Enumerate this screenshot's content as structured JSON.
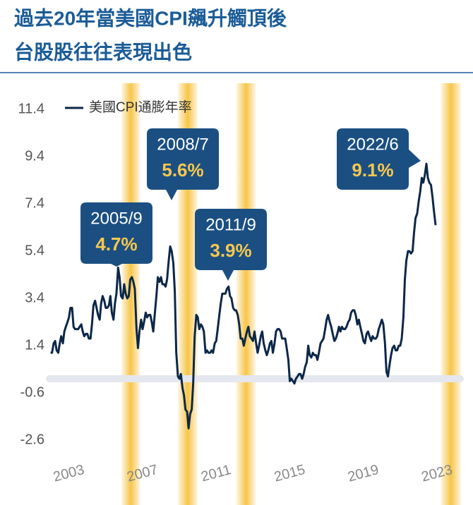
{
  "chart_data": {
    "type": "line",
    "title_lines": [
      "過去20年當美國CPI飆升觸頂後",
      "台股股往往表現出色"
    ],
    "x": [
      2002,
      2002.08,
      2002.17,
      2002.25,
      2002.33,
      2002.42,
      2002.5,
      2002.58,
      2002.67,
      2002.75,
      2002.83,
      2002.92,
      2003,
      2003.08,
      2003.17,
      2003.25,
      2003.33,
      2003.42,
      2003.5,
      2003.58,
      2003.67,
      2003.75,
      2003.83,
      2003.92,
      2004,
      2004.08,
      2004.17,
      2004.25,
      2004.33,
      2004.42,
      2004.5,
      2004.58,
      2004.67,
      2004.75,
      2004.83,
      2004.92,
      2005,
      2005.08,
      2005.17,
      2005.25,
      2005.33,
      2005.42,
      2005.5,
      2005.58,
      2005.67,
      2005.75,
      2005.83,
      2005.92,
      2006,
      2006.08,
      2006.17,
      2006.25,
      2006.33,
      2006.42,
      2006.5,
      2006.58,
      2006.67,
      2006.75,
      2006.83,
      2006.92,
      2007,
      2007.08,
      2007.17,
      2007.25,
      2007.33,
      2007.42,
      2007.5,
      2007.58,
      2007.67,
      2007.75,
      2007.83,
      2007.92,
      2008,
      2008.08,
      2008.17,
      2008.25,
      2008.33,
      2008.42,
      2008.5,
      2008.58,
      2008.67,
      2008.75,
      2008.83,
      2008.92,
      2009,
      2009.08,
      2009.17,
      2009.25,
      2009.33,
      2009.42,
      2009.5,
      2009.58,
      2009.67,
      2009.75,
      2009.83,
      2009.92,
      2010,
      2010.08,
      2010.17,
      2010.25,
      2010.33,
      2010.42,
      2010.5,
      2010.58,
      2010.67,
      2010.75,
      2010.83,
      2010.92,
      2011,
      2011.08,
      2011.17,
      2011.25,
      2011.33,
      2011.42,
      2011.5,
      2011.58,
      2011.67,
      2011.75,
      2011.83,
      2011.92,
      2012,
      2012.08,
      2012.17,
      2012.25,
      2012.33,
      2012.42,
      2012.5,
      2012.58,
      2012.67,
      2012.75,
      2012.83,
      2012.92,
      2013,
      2013.08,
      2013.17,
      2013.25,
      2013.33,
      2013.42,
      2013.5,
      2013.58,
      2013.67,
      2013.75,
      2013.83,
      2013.92,
      2014,
      2014.08,
      2014.17,
      2014.25,
      2014.33,
      2014.42,
      2014.5,
      2014.58,
      2014.67,
      2014.75,
      2014.83,
      2014.92,
      2015,
      2015.08,
      2015.17,
      2015.25,
      2015.33,
      2015.42,
      2015.5,
      2015.58,
      2015.67,
      2015.75,
      2015.83,
      2015.92,
      2016,
      2016.08,
      2016.17,
      2016.25,
      2016.33,
      2016.42,
      2016.5,
      2016.58,
      2016.67,
      2016.75,
      2016.83,
      2016.92,
      2017,
      2017.08,
      2017.17,
      2017.25,
      2017.33,
      2017.42,
      2017.5,
      2017.58,
      2017.67,
      2017.75,
      2017.83,
      2017.92,
      2018,
      2018.08,
      2018.17,
      2018.25,
      2018.33,
      2018.42,
      2018.5,
      2018.58,
      2018.67,
      2018.75,
      2018.83,
      2018.92,
      2019,
      2019.08,
      2019.17,
      2019.25,
      2019.33,
      2019.42,
      2019.5,
      2019.58,
      2019.67,
      2019.75,
      2019.83,
      2019.92,
      2020,
      2020.08,
      2020.17,
      2020.25,
      2020.33,
      2020.42,
      2020.5,
      2020.58,
      2020.67,
      2020.75,
      2020.83,
      2020.92,
      2021,
      2021.08,
      2021.17,
      2021.25,
      2021.33,
      2021.42,
      2021.5,
      2021.58,
      2021.67,
      2021.75,
      2021.83,
      2021.92,
      2022,
      2022.08,
      2022.17,
      2022.25,
      2022.33,
      2022.42,
      2022.5,
      2022.58,
      2022.67,
      2022.75,
      2022.83,
      2022.92
    ],
    "series": [
      {
        "name": "美國CPI通膨年率",
        "color": "#0c2748",
        "values": [
          1.1,
          1.1,
          1.5,
          1.6,
          1.2,
          1.1,
          1.5,
          1.8,
          1.5,
          2.0,
          2.2,
          2.4,
          2.6,
          3.0,
          3.0,
          2.2,
          2.1,
          2.1,
          2.1,
          2.2,
          2.3,
          2.0,
          1.8,
          1.9,
          1.9,
          1.7,
          1.7,
          2.3,
          3.1,
          3.3,
          3.0,
          2.7,
          2.5,
          3.2,
          3.5,
          3.3,
          3.0,
          3.0,
          3.1,
          3.5,
          2.8,
          2.5,
          3.2,
          3.6,
          4.7,
          4.3,
          3.5,
          3.4,
          4.0,
          3.6,
          3.4,
          3.5,
          4.2,
          4.3,
          4.1,
          3.8,
          2.1,
          1.3,
          2.0,
          2.5,
          2.1,
          2.4,
          2.8,
          2.6,
          2.7,
          2.7,
          2.4,
          2.0,
          2.8,
          3.5,
          4.3,
          4.1,
          4.3,
          4.0,
          4.0,
          3.9,
          4.2,
          5.0,
          5.6,
          5.4,
          4.9,
          3.7,
          1.1,
          0.1,
          0.0,
          0.2,
          -0.4,
          -0.7,
          -1.3,
          -1.4,
          -2.1,
          -1.5,
          -1.3,
          -0.2,
          1.8,
          2.7,
          2.6,
          2.1,
          2.3,
          2.2,
          2.0,
          1.1,
          1.2,
          1.1,
          1.1,
          1.2,
          1.1,
          1.5,
          1.6,
          2.1,
          2.7,
          3.2,
          3.6,
          3.6,
          3.6,
          3.8,
          3.9,
          3.5,
          3.4,
          3.0,
          2.9,
          2.9,
          2.7,
          2.3,
          1.7,
          1.7,
          1.4,
          1.7,
          2.0,
          2.2,
          1.8,
          1.7,
          1.6,
          2.0,
          1.5,
          1.1,
          1.4,
          1.8,
          2.0,
          1.5,
          1.2,
          1.0,
          1.2,
          1.5,
          1.6,
          1.1,
          1.5,
          2.0,
          2.1,
          2.1,
          2.0,
          1.7,
          1.7,
          1.7,
          1.3,
          0.8,
          -0.1,
          0.0,
          -0.1,
          -0.2,
          0.0,
          0.1,
          0.2,
          0.2,
          0.0,
          0.2,
          0.5,
          0.7,
          1.4,
          1.0,
          0.9,
          1.1,
          1.0,
          1.0,
          0.8,
          1.1,
          1.5,
          1.6,
          1.7,
          2.1,
          2.5,
          2.7,
          2.4,
          2.2,
          1.9,
          1.6,
          1.7,
          1.9,
          2.2,
          2.0,
          2.2,
          2.1,
          2.1,
          2.2,
          2.4,
          2.5,
          2.8,
          2.9,
          2.9,
          2.7,
          2.3,
          2.5,
          2.2,
          1.9,
          1.6,
          1.5,
          1.9,
          2.0,
          1.8,
          1.6,
          1.8,
          1.7,
          1.7,
          1.8,
          2.1,
          2.3,
          2.5,
          2.3,
          1.5,
          0.3,
          0.1,
          0.6,
          1.0,
          1.3,
          1.4,
          1.2,
          1.2,
          1.4,
          1.4,
          1.7,
          2.6,
          4.2,
          5.0,
          5.4,
          5.4,
          5.3,
          5.4,
          6.2,
          6.8,
          7.0,
          7.5,
          7.9,
          8.5,
          8.3,
          8.6,
          9.1,
          8.5,
          8.3,
          8.2,
          7.7,
          7.1,
          6.5
        ]
      }
    ],
    "xlim": [
      2001.9,
      2024.3
    ],
    "xticks": [
      2003,
      2007,
      2011,
      2015,
      2019,
      2023
    ],
    "ylim": [
      -3.2,
      12
    ],
    "yticks": [
      11.4,
      9.4,
      7.4,
      5.4,
      3.4,
      1.4,
      -0.6,
      -2.6
    ],
    "highlights": [
      [
        2005.86,
        2006.86
      ],
      [
        2008.92,
        2009.99
      ],
      [
        2012.1,
        2013.14
      ],
      [
        2023.2,
        2024.3
      ]
    ],
    "highlight_color": "#f7c548",
    "reference_line": 0,
    "annotations": [
      {
        "text": "2005/9",
        "value": 4.7,
        "value_label": "4.7%"
      },
      {
        "text": "2008/7",
        "value": 5.6,
        "value_label": "5.6%"
      },
      {
        "text": "2011/9",
        "value": 3.9,
        "value_label": "3.9%"
      },
      {
        "text": "2022/6",
        "value": 9.1,
        "value_label": "9.1%"
      }
    ],
    "annotation_color": "#1b4f82"
  }
}
